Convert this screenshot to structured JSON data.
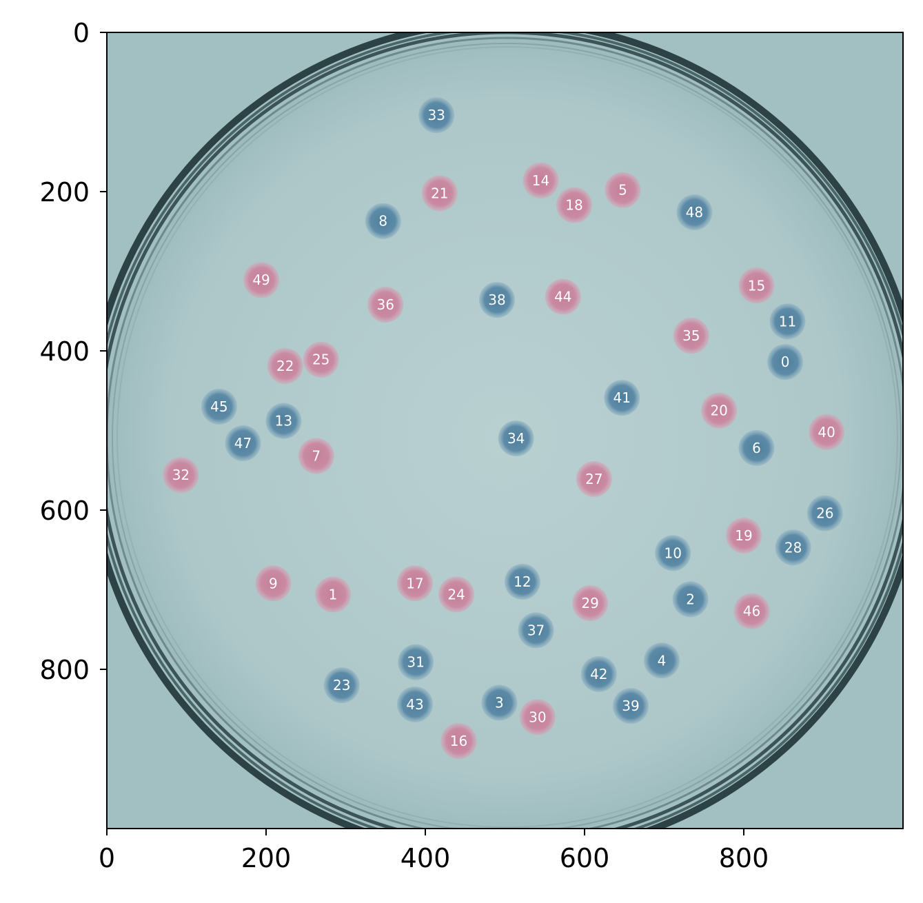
{
  "colors": {
    "plate_background": "#a7c3c5",
    "plate_center": "#b7cfd0",
    "plate_rim": "#2f4a4c",
    "pink_colony": "#c98aa2",
    "blue_colony": "#5d8ba7",
    "label_text": "#ffffff"
  },
  "chart_data": {
    "type": "scatter",
    "title": "",
    "xlabel": "",
    "ylabel": "",
    "xlim": [
      0,
      1000
    ],
    "ylim": [
      1000,
      0
    ],
    "x_ticks": [
      "0",
      "200",
      "400",
      "600",
      "800"
    ],
    "y_ticks": [
      "0",
      "200",
      "400",
      "600",
      "800"
    ],
    "y_axis_inverted": true,
    "grid": false,
    "background": "photograph of a petri dish with colonies",
    "points": [
      {
        "label": "0",
        "x": 852,
        "y": 414,
        "color": "blue"
      },
      {
        "label": "1",
        "x": 284,
        "y": 706,
        "color": "pink"
      },
      {
        "label": "2",
        "x": 733,
        "y": 712,
        "color": "blue"
      },
      {
        "label": "3",
        "x": 493,
        "y": 842,
        "color": "blue"
      },
      {
        "label": "4",
        "x": 697,
        "y": 789,
        "color": "blue"
      },
      {
        "label": "5",
        "x": 648,
        "y": 198,
        "color": "pink"
      },
      {
        "label": "6",
        "x": 816,
        "y": 522,
        "color": "blue"
      },
      {
        "label": "7",
        "x": 263,
        "y": 532,
        "color": "pink"
      },
      {
        "label": "8",
        "x": 347,
        "y": 237,
        "color": "blue"
      },
      {
        "label": "9",
        "x": 209,
        "y": 692,
        "color": "pink"
      },
      {
        "label": "10",
        "x": 711,
        "y": 654,
        "color": "blue"
      },
      {
        "label": "11",
        "x": 855,
        "y": 363,
        "color": "blue"
      },
      {
        "label": "12",
        "x": 522,
        "y": 690,
        "color": "blue"
      },
      {
        "label": "13",
        "x": 222,
        "y": 488,
        "color": "blue"
      },
      {
        "label": "14",
        "x": 545,
        "y": 186,
        "color": "pink"
      },
      {
        "label": "15",
        "x": 816,
        "y": 318,
        "color": "pink"
      },
      {
        "label": "16",
        "x": 442,
        "y": 890,
        "color": "pink"
      },
      {
        "label": "17",
        "x": 387,
        "y": 692,
        "color": "pink"
      },
      {
        "label": "18",
        "x": 587,
        "y": 217,
        "color": "pink"
      },
      {
        "label": "19",
        "x": 800,
        "y": 632,
        "color": "pink"
      },
      {
        "label": "20",
        "x": 769,
        "y": 475,
        "color": "pink"
      },
      {
        "label": "21",
        "x": 418,
        "y": 202,
        "color": "pink"
      },
      {
        "label": "22",
        "x": 224,
        "y": 419,
        "color": "pink"
      },
      {
        "label": "23",
        "x": 295,
        "y": 820,
        "color": "blue"
      },
      {
        "label": "24",
        "x": 439,
        "y": 706,
        "color": "pink"
      },
      {
        "label": "25",
        "x": 269,
        "y": 411,
        "color": "pink"
      },
      {
        "label": "26",
        "x": 902,
        "y": 604,
        "color": "blue"
      },
      {
        "label": "27",
        "x": 612,
        "y": 561,
        "color": "pink"
      },
      {
        "label": "28",
        "x": 862,
        "y": 647,
        "color": "blue"
      },
      {
        "label": "29",
        "x": 607,
        "y": 717,
        "color": "pink"
      },
      {
        "label": "30",
        "x": 541,
        "y": 860,
        "color": "pink"
      },
      {
        "label": "31",
        "x": 388,
        "y": 791,
        "color": "blue"
      },
      {
        "label": "32",
        "x": 93,
        "y": 556,
        "color": "pink"
      },
      {
        "label": "33",
        "x": 414,
        "y": 104,
        "color": "blue"
      },
      {
        "label": "34",
        "x": 514,
        "y": 510,
        "color": "blue"
      },
      {
        "label": "35",
        "x": 734,
        "y": 381,
        "color": "pink"
      },
      {
        "label": "36",
        "x": 350,
        "y": 342,
        "color": "pink"
      },
      {
        "label": "37",
        "x": 539,
        "y": 751,
        "color": "blue"
      },
      {
        "label": "38",
        "x": 490,
        "y": 336,
        "color": "blue"
      },
      {
        "label": "39",
        "x": 658,
        "y": 846,
        "color": "blue"
      },
      {
        "label": "40",
        "x": 904,
        "y": 502,
        "color": "pink"
      },
      {
        "label": "41",
        "x": 647,
        "y": 459,
        "color": "blue"
      },
      {
        "label": "42",
        "x": 618,
        "y": 806,
        "color": "blue"
      },
      {
        "label": "43",
        "x": 387,
        "y": 844,
        "color": "blue"
      },
      {
        "label": "44",
        "x": 573,
        "y": 332,
        "color": "pink"
      },
      {
        "label": "45",
        "x": 141,
        "y": 470,
        "color": "blue"
      },
      {
        "label": "46",
        "x": 810,
        "y": 727,
        "color": "pink"
      },
      {
        "label": "47",
        "x": 171,
        "y": 516,
        "color": "blue"
      },
      {
        "label": "48",
        "x": 738,
        "y": 226,
        "color": "blue"
      },
      {
        "label": "49",
        "x": 194,
        "y": 311,
        "color": "pink"
      }
    ]
  }
}
